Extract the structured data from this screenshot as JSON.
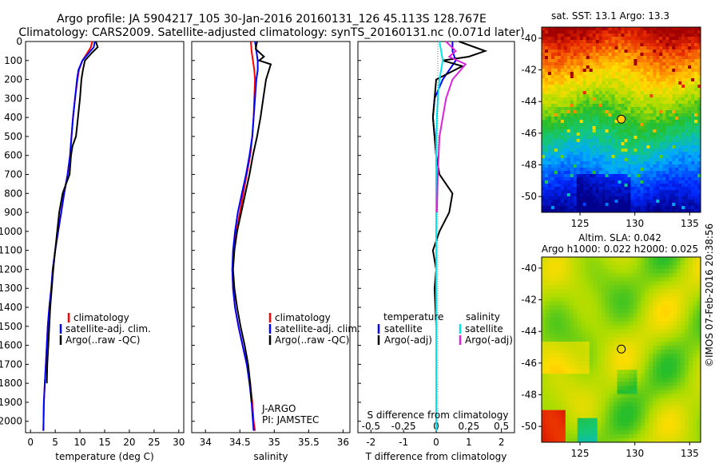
{
  "header": {
    "line1": "Argo profile: JA 5904217_105 30-Jan-2016 20160131_126 45.113S 128.767E",
    "line2": "Climatology: CARS2009. Satellite-adjusted climatology: synTS_20160131.nc (0.071d later)"
  },
  "side_text": "©IMOS 07-Feb-2016 20:38:56",
  "colors": {
    "climatology": "#ff0000",
    "satellite": "#0000ff",
    "argo": "#000000",
    "sal_satellite": "#00e5ee",
    "sal_argo": "#dd22dd"
  },
  "chart_data": [
    {
      "type": "line",
      "xlabel": "temperature (deg C)",
      "xlim": [
        -1,
        31
      ],
      "xticks": [
        "0",
        "5",
        "10",
        "15",
        "20",
        "25",
        "30"
      ],
      "ylim": [
        2060,
        0
      ],
      "yticks": [
        "0",
        "100",
        "200",
        "300",
        "400",
        "500",
        "600",
        "700",
        "800",
        "900",
        "1000",
        "1100",
        "1200",
        "1300",
        "1400",
        "1500",
        "1600",
        "1700",
        "1800",
        "1900",
        "2000"
      ],
      "legend": [
        "climatology",
        "satellite-adj. clim.",
        "Argo(..raw -QC)"
      ],
      "series": [
        {
          "name": "climatology",
          "x": [
            12.5,
            12.2,
            11.5,
            10.5,
            9.8,
            9.5,
            9.0,
            8.6,
            8.3,
            8.0,
            7.5,
            6.8,
            6.2,
            5.6,
            5.0,
            4.5,
            4.2,
            3.8,
            3.5,
            3.3,
            3.1,
            2.9,
            2.7,
            2.6
          ],
          "y": [
            0,
            30,
            60,
            100,
            150,
            200,
            300,
            400,
            500,
            600,
            700,
            800,
            900,
            1000,
            1100,
            1200,
            1300,
            1400,
            1500,
            1600,
            1700,
            1800,
            1900,
            2050
          ]
        },
        {
          "name": "satellite-adj. clim.",
          "x": [
            13.0,
            12.8,
            11.8,
            10.5,
            9.7,
            9.4,
            9.0,
            8.6,
            8.3,
            8.0,
            7.5,
            6.8,
            6.2,
            5.6,
            5.0,
            4.5,
            4.2,
            3.8,
            3.5,
            3.3,
            3.1,
            2.9,
            2.7,
            2.6
          ],
          "y": [
            0,
            30,
            60,
            100,
            150,
            200,
            300,
            400,
            500,
            600,
            700,
            800,
            900,
            1000,
            1100,
            1200,
            1300,
            1400,
            1500,
            1600,
            1700,
            1800,
            1900,
            2050
          ]
        },
        {
          "name": "Argo(..raw -QC)",
          "x": [
            13.2,
            13.6,
            12.4,
            11.0,
            10.6,
            10.3,
            10.0,
            9.6,
            9.2,
            8.5,
            8.2,
            7.9,
            7.2,
            6.5,
            5.8,
            5.4,
            5.0,
            4.6,
            4.3,
            4.0,
            3.8,
            3.6,
            3.4,
            3.3
          ],
          "y": [
            0,
            30,
            60,
            100,
            150,
            200,
            300,
            400,
            500,
            550,
            600,
            700,
            750,
            800,
            900,
            1000,
            1100,
            1200,
            1300,
            1400,
            1500,
            1600,
            1700,
            1800
          ]
        }
      ]
    },
    {
      "type": "line",
      "xlabel": "salinity",
      "xlim": [
        33.8,
        36.1
      ],
      "xticks": [
        "34",
        "34.5",
        "35",
        "35.5",
        "36"
      ],
      "ylim": [
        2060,
        0
      ],
      "legend": [
        "climatology",
        "satellite-adj. clim.",
        "Argo(..raw -QC)"
      ],
      "annotations": [
        "J-ARGO",
        "PI: JAMSTEC"
      ],
      "series": [
        {
          "name": "climatology",
          "x": [
            34.66,
            34.67,
            34.69,
            34.71,
            34.72,
            34.71,
            34.7,
            34.68,
            34.65,
            34.6,
            34.55,
            34.5,
            34.45,
            34.41,
            34.39,
            34.4,
            34.43,
            34.48,
            34.54,
            34.6,
            34.65,
            34.68,
            34.7,
            34.72
          ],
          "y": [
            0,
            50,
            100,
            150,
            200,
            300,
            400,
            500,
            600,
            700,
            800,
            900,
            1000,
            1100,
            1200,
            1300,
            1400,
            1500,
            1600,
            1700,
            1800,
            1900,
            2000,
            2050
          ]
        },
        {
          "name": "satellite-adj. clim.",
          "x": [
            34.72,
            34.74,
            34.76,
            34.76,
            34.74,
            34.72,
            34.7,
            34.68,
            34.64,
            34.59,
            34.53,
            34.47,
            34.43,
            34.4,
            34.39,
            34.4,
            34.43,
            34.48,
            34.54,
            34.6,
            34.64,
            34.67,
            34.69,
            34.7
          ],
          "y": [
            0,
            50,
            100,
            150,
            200,
            300,
            400,
            500,
            600,
            700,
            800,
            900,
            1000,
            1100,
            1200,
            1300,
            1400,
            1500,
            1600,
            1700,
            1800,
            1900,
            2000,
            2050
          ]
        },
        {
          "name": "Argo(..raw -QC)",
          "x": [
            34.75,
            34.73,
            34.85,
            34.78,
            34.95,
            34.88,
            34.84,
            34.8,
            34.75,
            34.69,
            34.64,
            34.58,
            34.52,
            34.46,
            34.42,
            34.4,
            34.42,
            34.46,
            34.51,
            34.57,
            34.62,
            34.65,
            34.67
          ],
          "y": [
            0,
            40,
            80,
            100,
            120,
            200,
            300,
            400,
            500,
            600,
            700,
            800,
            900,
            1000,
            1100,
            1200,
            1300,
            1400,
            1500,
            1600,
            1700,
            1800,
            1900
          ]
        }
      ]
    },
    {
      "type": "line",
      "xlabel": "T difference from climatology",
      "xlabel_top": "S difference from climatology",
      "xlim": [
        -2.4,
        2.4
      ],
      "xticks": [
        "-2",
        "-1",
        "0",
        "1",
        "2"
      ],
      "xticks_top": [
        "-0.5",
        "-0.25",
        "0",
        "0.25",
        "0.5"
      ],
      "ylim": [
        2060,
        0
      ],
      "legend_title_left": "temperature",
      "legend_title_right": "salinity",
      "legend": [
        "satellite",
        "Argo(-adj)",
        "satellite",
        "Argo(-adj)"
      ],
      "series": [
        {
          "name": "satellite",
          "x": [
            0.5,
            0.5,
            0.6,
            0.2,
            -0.05,
            -0.1,
            -0.05,
            0,
            0,
            0,
            0,
            0,
            0,
            0,
            0,
            0,
            0,
            0
          ],
          "y": [
            0,
            50,
            100,
            200,
            300,
            400,
            500,
            600,
            800,
            1000,
            1200,
            1400,
            1600,
            1800,
            2050,
            2050,
            2050,
            2050
          ]
        },
        {
          "name": "Argo(-adj)",
          "x": [
            0.7,
            1.5,
            1.0,
            0.2,
            0.8,
            0.0,
            -0.1,
            0.0,
            0.1,
            0.3,
            0.5,
            0.4,
            0.1,
            -0.1,
            0.0,
            -0.05,
            0.0
          ],
          "y": [
            0,
            50,
            80,
            100,
            130,
            200,
            400,
            600,
            700,
            750,
            800,
            900,
            1000,
            1100,
            1200,
            1300,
            1500
          ]
        },
        {
          "name": "satellite",
          "x": [
            0.1,
            0.2,
            0.1,
            0.05,
            0.02,
            0,
            0,
            0,
            0,
            0,
            0,
            0,
            0,
            0
          ],
          "y": [
            0,
            100,
            200,
            300,
            400,
            500,
            700,
            900,
            1100,
            1300,
            1500,
            1700,
            1900,
            2050
          ]
        },
        {
          "name": "Argo(-adj)",
          "x": [
            0.3,
            0.6,
            0.4,
            0.9,
            0.5,
            0.3,
            0.1,
            0.05,
            0.02
          ],
          "y": [
            0,
            50,
            80,
            120,
            200,
            300,
            500,
            700,
            900
          ]
        }
      ]
    },
    {
      "type": "heatmap",
      "title": "sat. SST: 13.1  Argo: 13.3",
      "xticks": [
        "125",
        "130",
        "135"
      ],
      "yticks": [
        "-40",
        "-42",
        "-44",
        "-46",
        "-48",
        "-50"
      ],
      "marker": {
        "x": 128.767,
        "y": -45.113
      }
    },
    {
      "type": "heatmap",
      "title_line1": "Altim. SLA: 0.042",
      "title_line2": "Argo h1000: 0.022 h2000: 0.025",
      "xticks": [
        "125",
        "130",
        "135"
      ],
      "yticks": [
        "-40",
        "-42",
        "-44",
        "-46",
        "-48",
        "-50"
      ],
      "marker": {
        "x": 128.767,
        "y": -45.113
      }
    }
  ]
}
